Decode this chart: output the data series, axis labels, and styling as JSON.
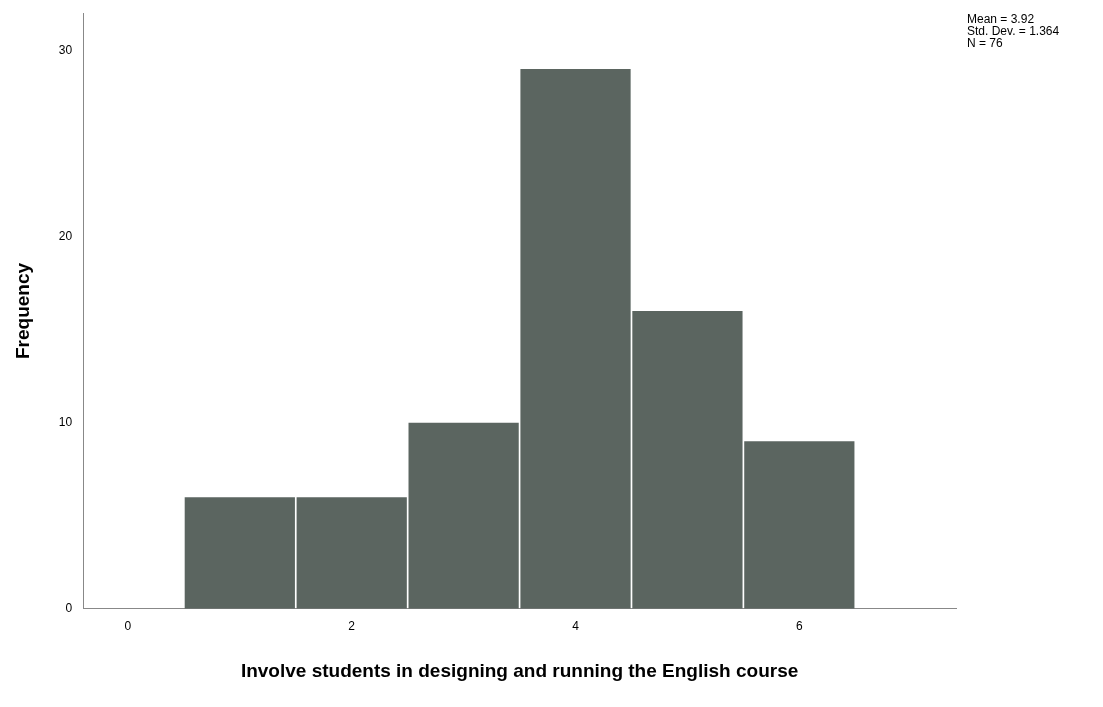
{
  "chart_data": {
    "type": "histogram",
    "xlabel": "Involve students in designing and running the English course",
    "ylabel": "Frequency",
    "bins": [
      0.5,
      1.5,
      2.5,
      3.5,
      4.5,
      5.5,
      6.5
    ],
    "values": [
      6,
      6,
      10,
      29,
      16,
      9
    ],
    "color": "#5b6560",
    "xlim": [
      -0.4,
      7.4
    ],
    "xticks": [
      0,
      2,
      4,
      6
    ],
    "ylim": [
      0,
      32
    ],
    "yticks": [
      0,
      10,
      20,
      30
    ],
    "grid": false,
    "legend": false,
    "annotations": [
      "Mean = 3.92",
      "Std. Dev. = 1.364",
      "N = 76"
    ]
  }
}
